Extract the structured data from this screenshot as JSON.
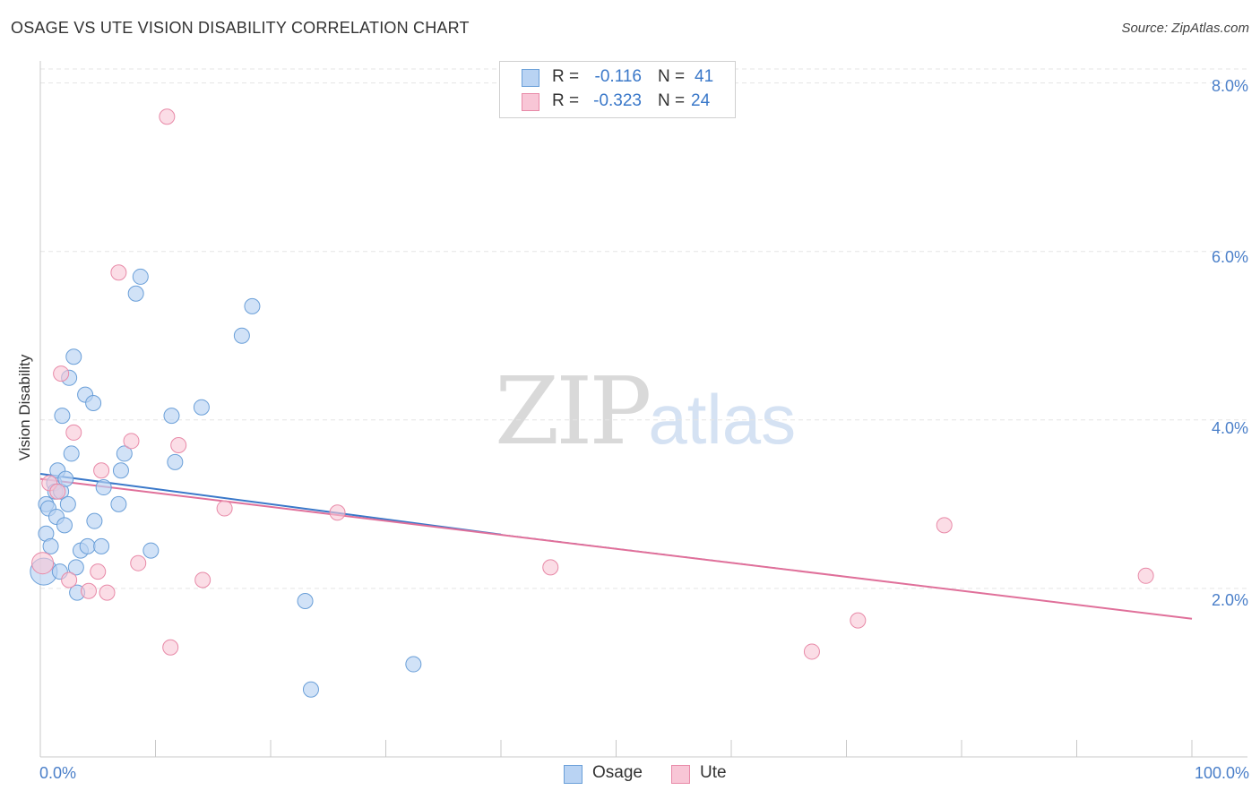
{
  "header": {
    "title": "OSAGE VS UTE VISION DISABILITY CORRELATION CHART",
    "source": "Source: ZipAtlas.com"
  },
  "watermark": {
    "zip": "ZIP",
    "atlas": "atlas"
  },
  "legend": {
    "r_label": "R =",
    "n_label": "N =",
    "osage": {
      "r": "-0.116",
      "n": "41"
    },
    "ute": {
      "r": "-0.323",
      "n": "24"
    }
  },
  "colors": {
    "osage_fill": "#b9d3f3",
    "osage_stroke": "#6a9fd8",
    "osage_line": "#3a78c9",
    "ute_fill": "#f8c6d6",
    "ute_stroke": "#e88aa8",
    "ute_line": "#e0709a",
    "tick_text": "#4a7fc9",
    "grid": "#e5e5e5"
  },
  "chart_data": {
    "type": "scatter",
    "title": "OSAGE VS UTE VISION DISABILITY CORRELATION CHART",
    "xlabel": "",
    "ylabel": "Vision Disability",
    "xlim": [
      0,
      100
    ],
    "ylim": [
      0,
      8.4
    ],
    "y_ticks": [
      "2.0%",
      "4.0%",
      "6.0%",
      "8.0%"
    ],
    "y_tick_values": [
      2,
      4,
      6,
      8
    ],
    "x_tick_labels": [
      "0.0%",
      "100.0%"
    ],
    "grid": true,
    "legend_position": "top-center",
    "series": [
      {
        "name": "Osage",
        "points": [
          [
            0.3,
            2.2
          ],
          [
            0.5,
            2.65
          ],
          [
            0.5,
            3.0
          ],
          [
            0.7,
            2.95
          ],
          [
            0.9,
            2.5
          ],
          [
            1.2,
            3.25
          ],
          [
            1.3,
            3.15
          ],
          [
            1.4,
            2.85
          ],
          [
            1.5,
            3.4
          ],
          [
            1.7,
            2.2
          ],
          [
            1.8,
            3.15
          ],
          [
            1.9,
            4.05
          ],
          [
            2.1,
            2.75
          ],
          [
            2.2,
            3.3
          ],
          [
            2.4,
            3.0
          ],
          [
            2.5,
            4.5
          ],
          [
            2.7,
            3.6
          ],
          [
            2.9,
            4.75
          ],
          [
            3.1,
            2.25
          ],
          [
            3.2,
            1.95
          ],
          [
            3.5,
            2.45
          ],
          [
            3.9,
            4.3
          ],
          [
            4.1,
            2.5
          ],
          [
            4.6,
            4.2
          ],
          [
            4.7,
            2.8
          ],
          [
            5.3,
            2.5
          ],
          [
            5.5,
            3.2
          ],
          [
            6.8,
            3.0
          ],
          [
            7.0,
            3.4
          ],
          [
            7.3,
            3.6
          ],
          [
            8.3,
            5.5
          ],
          [
            8.7,
            5.7
          ],
          [
            9.6,
            2.45
          ],
          [
            11.4,
            4.05
          ],
          [
            11.7,
            3.5
          ],
          [
            14.0,
            4.15
          ],
          [
            17.5,
            5.0
          ],
          [
            18.4,
            5.35
          ],
          [
            23.0,
            1.85
          ],
          [
            23.5,
            0.8
          ],
          [
            32.4,
            1.1
          ]
        ]
      },
      {
        "name": "Ute",
        "points": [
          [
            0.8,
            3.25
          ],
          [
            1.5,
            3.15
          ],
          [
            1.8,
            4.55
          ],
          [
            2.5,
            2.1
          ],
          [
            2.9,
            3.85
          ],
          [
            4.2,
            1.97
          ],
          [
            5.0,
            2.2
          ],
          [
            5.3,
            3.4
          ],
          [
            5.8,
            1.95
          ],
          [
            6.8,
            5.75
          ],
          [
            7.9,
            3.75
          ],
          [
            8.5,
            2.3
          ],
          [
            11.0,
            7.6
          ],
          [
            11.3,
            1.3
          ],
          [
            12.0,
            3.7
          ],
          [
            14.1,
            2.1
          ],
          [
            16.0,
            2.95
          ],
          [
            25.8,
            2.9
          ],
          [
            44.3,
            2.25
          ],
          [
            67.0,
            1.25
          ],
          [
            71.0,
            1.62
          ],
          [
            78.5,
            2.75
          ],
          [
            96.0,
            2.15
          ],
          [
            0.2,
            2.3
          ]
        ]
      }
    ],
    "trend_lines": [
      {
        "name": "Osage",
        "start": [
          0,
          3.36
        ],
        "solid_end": [
          40,
          2.64
        ],
        "end": [
          100,
          1.64
        ]
      },
      {
        "name": "Ute",
        "start": [
          0,
          3.3
        ],
        "end": [
          100,
          1.64
        ]
      }
    ]
  }
}
